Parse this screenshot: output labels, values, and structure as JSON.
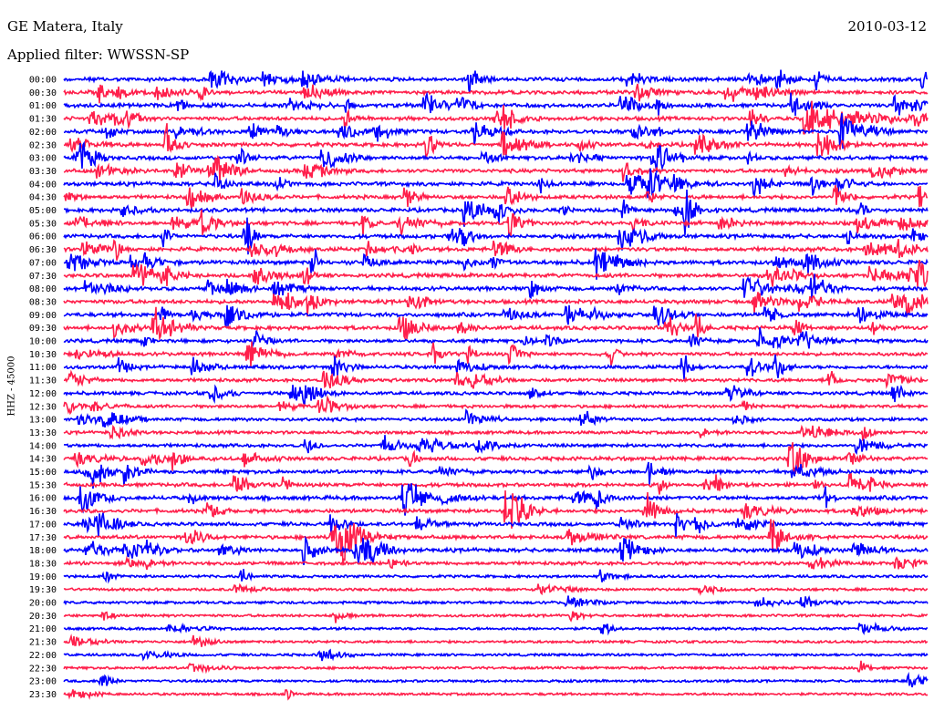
{
  "header": {
    "title": "GE Matera, Italy",
    "filter": "Applied filter: WWSSN-SP",
    "date": "2010-03-12"
  },
  "colors": {
    "even_row": "#0000ff",
    "odd_row": "#ff1f4b",
    "background": "#ffffff"
  },
  "chart_data": {
    "type": "line",
    "title": "GE Matera, Italy",
    "subtitle": "Applied filter: WWSSN-SP",
    "date": "2010-03-12",
    "ylabel": "HHZ - 45000",
    "xlabel": "",
    "series_description_rows": "48 half-hour seismogram traces, alternating blue/red",
    "rows": [
      "00:00",
      "00:30",
      "01:00",
      "01:30",
      "02:00",
      "02:30",
      "03:00",
      "03:30",
      "04:00",
      "04:30",
      "05:00",
      "05:30",
      "06:00",
      "06:30",
      "07:00",
      "07:30",
      "08:00",
      "08:30",
      "09:00",
      "09:30",
      "10:00",
      "10:30",
      "11:00",
      "11:30",
      "12:00",
      "12:30",
      "13:00",
      "13:30",
      "14:00",
      "14:30",
      "15:00",
      "15:30",
      "16:00",
      "16:30",
      "17:00",
      "17:30",
      "18:00",
      "18:30",
      "19:00",
      "19:30",
      "20:00",
      "20:30",
      "21:00",
      "21:30",
      "22:00",
      "22:30",
      "23:00",
      "23:30"
    ],
    "activity_level": [
      1.0,
      0.9,
      1.0,
      0.9,
      1.0,
      1.0,
      1.0,
      0.9,
      1.0,
      0.9,
      1.0,
      1.0,
      1.0,
      1.0,
      1.1,
      1.0,
      1.0,
      1.0,
      1.0,
      1.0,
      0.8,
      0.8,
      0.8,
      0.7,
      0.7,
      0.6,
      0.6,
      0.6,
      0.7,
      0.9,
      0.9,
      0.9,
      1.0,
      0.9,
      0.9,
      0.9,
      1.0,
      0.7,
      0.35,
      0.35,
      0.35,
      0.3,
      0.3,
      0.25,
      0.25,
      0.25,
      0.25,
      0.25
    ],
    "events": [
      {
        "row": 3,
        "t": 0.86,
        "amp": 3.6,
        "dur": 0.13
      },
      {
        "row": 4,
        "t": 0.9,
        "amp": 3.2,
        "dur": 0.06
      },
      {
        "row": 14,
        "t": 0.86,
        "amp": 2.2,
        "dur": 0.05
      },
      {
        "row": 36,
        "t": 0.28,
        "amp": 2.2,
        "dur": 0.03
      },
      {
        "row": 15,
        "t": 0.98,
        "amp": 1.2,
        "dur": 0.06
      },
      {
        "row": 11,
        "t": 0.97,
        "amp": 1.1,
        "dur": 0.06
      }
    ]
  }
}
